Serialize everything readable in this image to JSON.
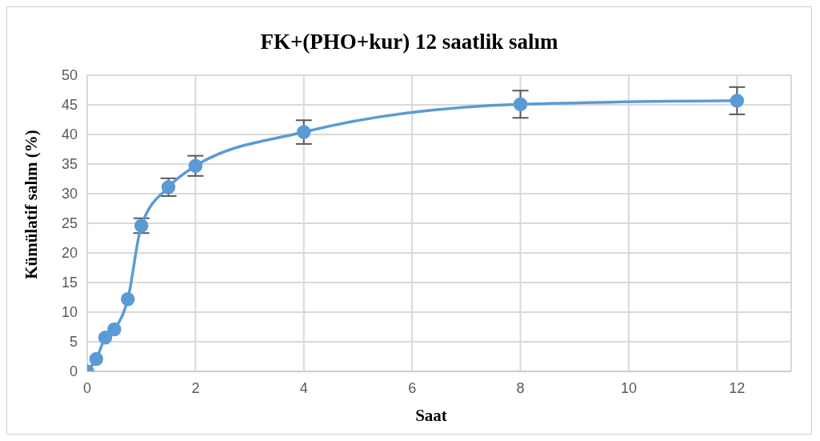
{
  "chart_data": {
    "type": "line",
    "title": "FK+(PHO+kur) 12 saatlik salım",
    "xlabel": "Saat",
    "ylabel": "Kümülatif salım (%)",
    "x": [
      0,
      0.167,
      0.333,
      0.5,
      0.75,
      1,
      1.5,
      2,
      4,
      8,
      12
    ],
    "series": [
      {
        "color": "#5b9bd5",
        "values": [
          0,
          2.1,
          5.7,
          7.1,
          12.2,
          24.6,
          31.1,
          34.7,
          40.4,
          45.1,
          45.7
        ],
        "errors": [
          null,
          null,
          null,
          null,
          null,
          1.25,
          1.5,
          1.7,
          2,
          2.3,
          2.3
        ]
      }
    ],
    "xlim": [
      0,
      13
    ],
    "xticks": [
      0,
      2,
      4,
      6,
      8,
      10,
      12
    ],
    "ylim": [
      0,
      50
    ],
    "yticks": [
      0,
      5,
      10,
      15,
      20,
      25,
      30,
      35,
      40,
      45,
      50
    ],
    "grid": true,
    "legend": false,
    "marker": "circle",
    "line_style": "solid"
  }
}
